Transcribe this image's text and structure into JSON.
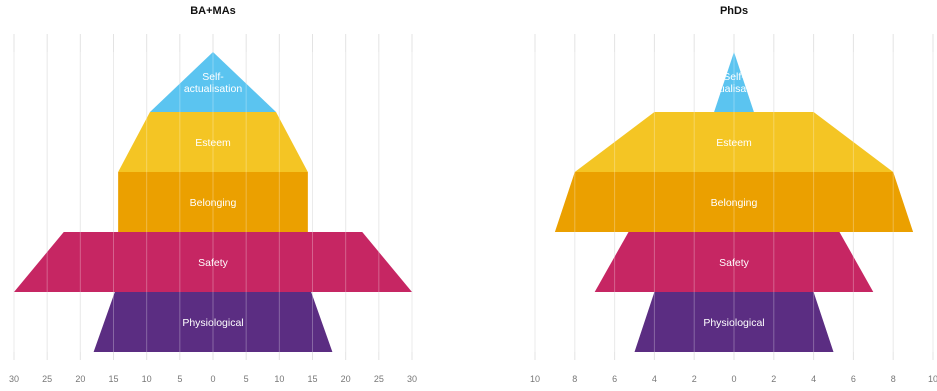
{
  "chart_data": [
    {
      "type": "area",
      "title": "BA+MAs",
      "xlim": [
        -30,
        30
      ],
      "xticks": [
        -30,
        -25,
        -20,
        -15,
        -10,
        -5,
        0,
        5,
        10,
        15,
        20,
        25,
        30
      ],
      "tick_labels": [
        "30",
        "25",
        "20",
        "15",
        "10",
        "5",
        "0",
        "5",
        "10",
        "15",
        "20",
        "25",
        "30"
      ],
      "grid": true,
      "categories": [
        "Self-actualisation",
        "Esteem",
        "Belonging",
        "Safety",
        "Physiological"
      ],
      "series": [
        {
          "label": "Self-\nactualisation",
          "top": 0,
          "bottom": 9.5,
          "color": "#5BC4F0"
        },
        {
          "label": "Esteem",
          "top": 9.5,
          "bottom": 14.3,
          "color": "#F4C524"
        },
        {
          "label": "Belonging",
          "top": 14.3,
          "bottom": 14.3,
          "color": "#EBA000"
        },
        {
          "label": "Safety",
          "top": 22.5,
          "bottom": 30,
          "color": "#C62663"
        },
        {
          "label": "Physiological",
          "top": 14.8,
          "bottom": 18,
          "color": "#5B2D82"
        }
      ]
    },
    {
      "type": "area",
      "title": "PhDs",
      "xlim": [
        -10,
        10
      ],
      "xticks": [
        -10,
        -8,
        -6,
        -4,
        -2,
        0,
        2,
        4,
        6,
        8,
        10
      ],
      "tick_labels": [
        "10",
        "8",
        "6",
        "4",
        "2",
        "0",
        "2",
        "4",
        "6",
        "8",
        "10"
      ],
      "grid": true,
      "categories": [
        "Self-actualisation",
        "Esteem",
        "Belonging",
        "Safety",
        "Physiological"
      ],
      "series": [
        {
          "label": "Self-\nactualisation",
          "top": 0,
          "bottom": 1,
          "color": "#5BC4F0"
        },
        {
          "label": "Esteem",
          "top": 4,
          "bottom": 8,
          "color": "#F4C524"
        },
        {
          "label": "Belonging",
          "top": 8,
          "bottom": 9,
          "color": "#EBA000"
        },
        {
          "label": "Safety",
          "top": 5.3,
          "bottom": 7,
          "color": "#C62663"
        },
        {
          "label": "Physiological",
          "top": 4,
          "bottom": 5,
          "color": "#5B2D82"
        }
      ]
    }
  ]
}
